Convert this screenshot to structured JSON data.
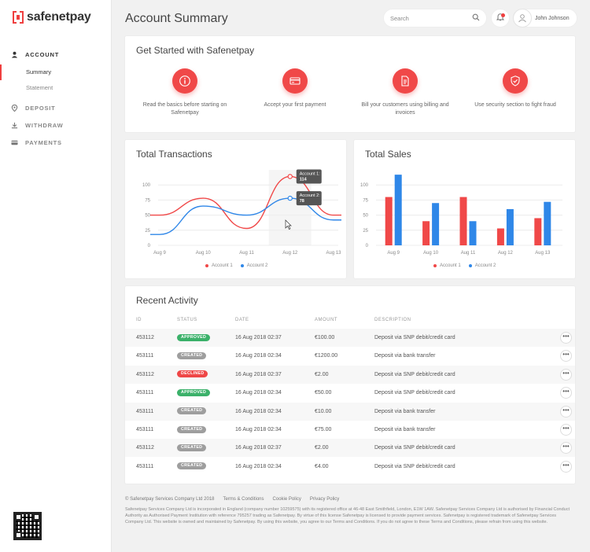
{
  "brand": {
    "name": "safenetpay",
    "accent": "#ef3f3f"
  },
  "sidebar": {
    "items": [
      {
        "label": "ACCOUNT",
        "icon": "user-icon",
        "active": true
      },
      {
        "label": "DEPOSIT",
        "icon": "location-pin-icon"
      },
      {
        "label": "WITHDRAW",
        "icon": "download-icon"
      },
      {
        "label": "PAYMENTS",
        "icon": "card-icon"
      }
    ],
    "account_sub": [
      {
        "label": "Summary",
        "active": true
      },
      {
        "label": "Statement"
      }
    ]
  },
  "header": {
    "title": "Account Summary",
    "search_placeholder": "Search",
    "user_name": "John Johnson"
  },
  "get_started": {
    "title": "Get Started with Safenetpay",
    "steps": [
      {
        "icon": "info-icon",
        "text": "Read the basics before starting on Safenetpay"
      },
      {
        "icon": "payment-card-icon",
        "text": "Accept your first payment"
      },
      {
        "icon": "document-icon",
        "text": "Bill your customers using billing and invoices"
      },
      {
        "icon": "shield-check-icon",
        "text": "Use security section to fight fraud"
      }
    ]
  },
  "transactions": {
    "title": "Total Transactions",
    "tooltip1": {
      "line1": "Account 1:",
      "line2": "114"
    },
    "tooltip2": {
      "line1": "Account 2:",
      "line2": "78"
    }
  },
  "sales": {
    "title": "Total Sales"
  },
  "chart_data": [
    {
      "type": "line",
      "title": "Total Transactions",
      "categories": [
        "Aug 9",
        "Aug 10",
        "Aug 11",
        "Aug 12",
        "Aug 13"
      ],
      "y_ticks": [
        "0",
        "25",
        "50",
        "75",
        "100"
      ],
      "ylim": [
        0,
        125
      ],
      "series": [
        {
          "name": "Account 1",
          "color": "#f04848",
          "values": [
            50,
            78,
            28,
            114,
            50
          ]
        },
        {
          "name": "Account 2",
          "color": "#2f87e8",
          "values": [
            18,
            65,
            50,
            78,
            42
          ]
        }
      ],
      "legend": "bottom"
    },
    {
      "type": "bar",
      "title": "Total Sales",
      "categories": [
        "Aug 9",
        "Aug 10",
        "Aug 11",
        "Aug 12",
        "Aug 13"
      ],
      "y_ticks": [
        "0",
        "25",
        "50",
        "75",
        "100"
      ],
      "ylim": [
        0,
        125
      ],
      "series": [
        {
          "name": "Account 1",
          "color": "#f04848",
          "values": [
            80,
            40,
            80,
            28,
            45
          ]
        },
        {
          "name": "Account 2",
          "color": "#2f87e8",
          "values": [
            117,
            70,
            40,
            60,
            72
          ]
        }
      ],
      "legend": "bottom"
    }
  ],
  "activity": {
    "title": "Recent Activity",
    "columns": [
      "ID",
      "STATUS",
      "DATE",
      "AMOUNT",
      "DESCRIPTION"
    ],
    "status_colors": {
      "APPROVED": "#3bb16a",
      "CREATED": "#9e9e9e",
      "DECLINED": "#ef4747"
    },
    "rows": [
      {
        "id": "453112",
        "status": "APPROVED",
        "date": "16 Aug 2018 02:37",
        "amount": "€100.00",
        "description": "Deposit via SNP debit/credit card"
      },
      {
        "id": "453111",
        "status": "CREATED",
        "date": "16 Aug 2018 02:34",
        "amount": "€1200.00",
        "description": "Deposit via bank transfer"
      },
      {
        "id": "453112",
        "status": "DECLINED",
        "date": "16 Aug 2018 02:37",
        "amount": "€2.00",
        "description": "Deposit via SNP debit/credit card"
      },
      {
        "id": "453111",
        "status": "APPROVED",
        "date": "16 Aug 2018 02:34",
        "amount": "€50.00",
        "description": "Deposit via SNP debit/credit card"
      },
      {
        "id": "453111",
        "status": "CREATED",
        "date": "16 Aug 2018 02:34",
        "amount": "€10.00",
        "description": "Deposit via bank transfer"
      },
      {
        "id": "453111",
        "status": "CREATED",
        "date": "16 Aug 2018 02:34",
        "amount": "€75.00",
        "description": "Deposit via bank transfer"
      },
      {
        "id": "453112",
        "status": "CREATED",
        "date": "16 Aug 2018 02:37",
        "amount": "€2.00",
        "description": "Deposit via SNP debit/credit card"
      },
      {
        "id": "453111",
        "status": "CREATED",
        "date": "16 Aug 2018 02:34",
        "amount": "€4.00",
        "description": "Deposit via SNP debit/credit card"
      }
    ],
    "more_label": "•••"
  },
  "footer": {
    "links": [
      "© Safenetpay Services Company Ltd 2018",
      "Terms & Conditions",
      "Cookie Policy",
      "Privacy Policy"
    ],
    "legal": "Safenetpay Services Company Ltd is incorporated in England (company number 10259575) with its registered office at 46-48 East Smithfield, London, E1W 1AW. Safenetpay Services Company Ltd is authorised by Financial Conduct Authority as Authorised Payment Institution with reference 795257 trading as Safenetpay. By virtue of this license Safenetpay is licensed to provide payment services. Safenetpay is registered trademark of Safenetpay Services Company Ltd. This website is owned and maintained by Safenetpay. By using this website, you agree to our Terms and Conditions. If you do not agree to these Terms and Conditions, please refrain from using this website."
  }
}
